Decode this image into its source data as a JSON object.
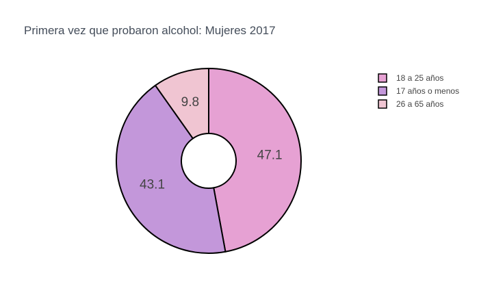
{
  "chart_data": {
    "type": "pie",
    "hole": true,
    "title": "Primera vez que probaron alcohol: Mujeres 2017",
    "categories": [
      "18 a 25 años",
      "17 años o menos",
      "26 a 65 años"
    ],
    "values": [
      47.1,
      43.1,
      9.8
    ],
    "colors": [
      "#e6a1d3",
      "#c397da",
      "#f0c5d2"
    ],
    "outline_color": "#000000",
    "legend_position": "top-right"
  }
}
